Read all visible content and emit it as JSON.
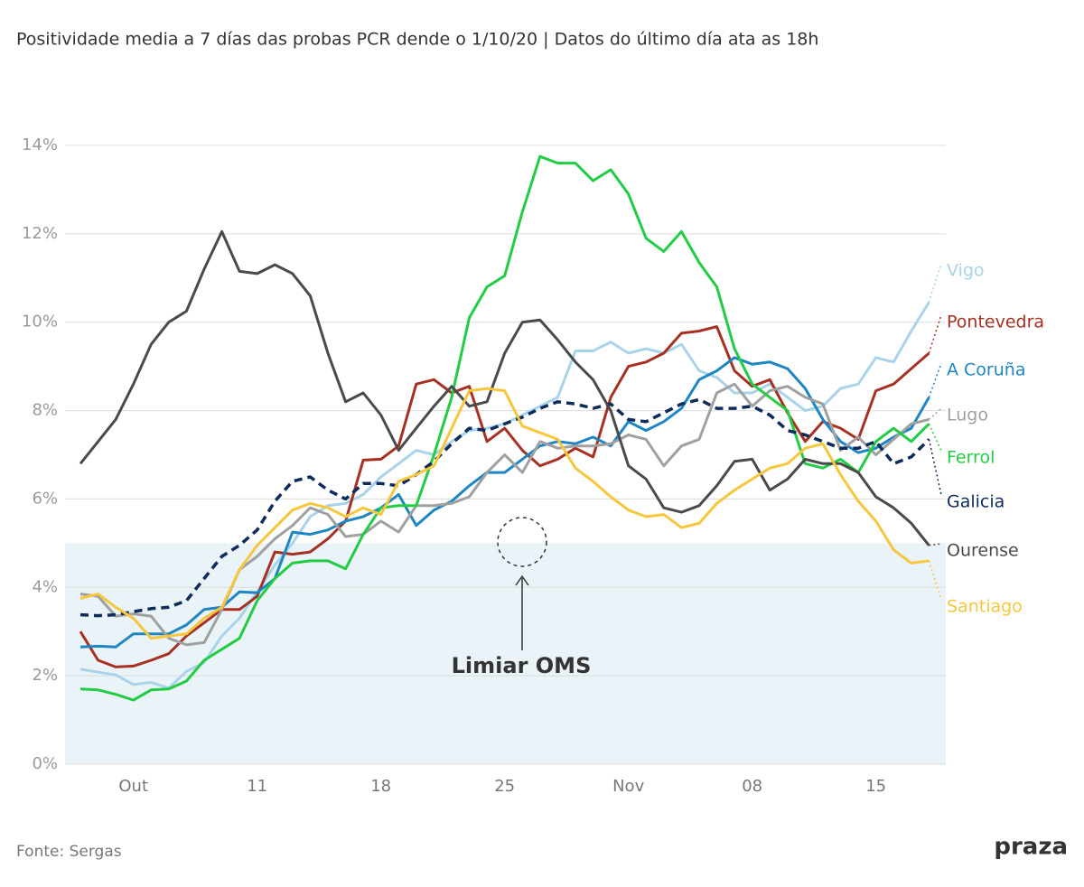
{
  "chart_data": {
    "type": "line",
    "title": "Positividade media a 7 días das probas PCR dende o 1/10/20 | Datos do último día ata as 18h",
    "source": "Fonte: Sergas",
    "logo": "praza",
    "annotation": "Limiar OMS",
    "threshold": 5,
    "threshold_color": "#eaf3f8",
    "grid": true,
    "categories": [
      null,
      null,
      null,
      "Out",
      null,
      null,
      null,
      null,
      null,
      null,
      "11",
      null,
      null,
      null,
      null,
      null,
      null,
      "18",
      null,
      null,
      null,
      null,
      null,
      null,
      "25",
      null,
      null,
      null,
      null,
      null,
      null,
      "Nov",
      null,
      null,
      null,
      null,
      null,
      null,
      "08",
      null,
      null,
      null,
      null,
      null,
      null,
      "15",
      null,
      null,
      null
    ],
    "ylim": [
      0,
      14
    ],
    "yticks": [
      {
        "value": 0,
        "label": "0%"
      },
      {
        "value": 2,
        "label": "2%"
      },
      {
        "value": 4,
        "label": "4%"
      },
      {
        "value": 6,
        "label": "6%"
      },
      {
        "value": 8,
        "label": "8%"
      },
      {
        "value": 10,
        "label": "10%"
      },
      {
        "value": 12,
        "label": "12%"
      },
      {
        "value": 14,
        "label": "14%"
      }
    ],
    "series": [
      {
        "name": "Vigo",
        "color": "#a9d3ea",
        "values": [
          2.15,
          2.08,
          2.02,
          1.8,
          1.85,
          1.72,
          2.1,
          2.3,
          2.9,
          3.3,
          3.9,
          4.5,
          5.0,
          5.6,
          5.85,
          5.9,
          6.1,
          6.5,
          6.8,
          7.1,
          7.0,
          7.3,
          7.55,
          7.6,
          7.7,
          7.9,
          8.1,
          8.3,
          9.35,
          9.35,
          9.55,
          9.3,
          9.4,
          9.3,
          9.5,
          8.9,
          8.75,
          8.4,
          8.4,
          8.6,
          8.3,
          8.0,
          8.1,
          8.5,
          8.6,
          9.2,
          9.1,
          9.8,
          10.45
        ]
      },
      {
        "name": "Pontevedra",
        "color": "#a63022",
        "values": [
          3.0,
          2.35,
          2.2,
          2.22,
          2.35,
          2.5,
          2.9,
          3.2,
          3.5,
          3.5,
          3.8,
          4.8,
          4.75,
          4.8,
          5.1,
          5.5,
          6.88,
          6.9,
          7.2,
          8.6,
          8.7,
          8.4,
          8.55,
          7.3,
          7.6,
          7.1,
          6.75,
          6.9,
          7.15,
          6.95,
          8.3,
          9.0,
          9.1,
          9.3,
          9.75,
          9.8,
          9.9,
          8.9,
          8.55,
          8.7,
          7.95,
          7.3,
          7.75,
          7.6,
          7.35,
          8.45,
          8.6,
          8.95,
          9.3
        ]
      },
      {
        "name": "A Coruña",
        "color": "#1f86c4",
        "values": [
          2.65,
          2.67,
          2.65,
          2.95,
          2.95,
          2.95,
          3.15,
          3.5,
          3.55,
          3.9,
          3.88,
          4.2,
          5.25,
          5.2,
          5.3,
          5.5,
          5.6,
          5.8,
          6.1,
          5.4,
          5.75,
          5.95,
          6.3,
          6.6,
          6.6,
          6.9,
          7.2,
          7.3,
          7.25,
          7.4,
          7.2,
          7.75,
          7.55,
          7.75,
          8.05,
          8.7,
          8.9,
          9.2,
          9.05,
          9.1,
          8.95,
          8.5,
          7.8,
          7.3,
          7.05,
          7.15,
          7.4,
          7.6,
          8.3
        ]
      },
      {
        "name": "Lugo",
        "color": "#a0a0a0",
        "values": [
          3.85,
          3.8,
          3.35,
          3.4,
          3.35,
          2.85,
          2.7,
          2.75,
          3.5,
          4.4,
          4.7,
          5.1,
          5.4,
          5.8,
          5.65,
          5.15,
          5.2,
          5.5,
          5.25,
          5.85,
          5.85,
          5.9,
          6.05,
          6.6,
          7.0,
          6.6,
          7.3,
          7.15,
          7.2,
          7.2,
          7.25,
          7.45,
          7.35,
          6.75,
          7.2,
          7.35,
          8.4,
          8.6,
          8.1,
          8.45,
          8.55,
          8.3,
          8.15,
          7.1,
          7.4,
          7.0,
          7.35,
          7.7,
          7.8
        ]
      },
      {
        "name": "Ferrol",
        "color": "#22cc44",
        "values": [
          1.7,
          1.68,
          1.58,
          1.45,
          1.68,
          1.7,
          1.88,
          2.35,
          2.6,
          2.85,
          3.7,
          4.2,
          4.55,
          4.6,
          4.6,
          4.42,
          5.2,
          5.8,
          5.85,
          5.85,
          7.0,
          8.3,
          10.1,
          10.8,
          11.05,
          12.5,
          13.75,
          13.6,
          13.6,
          13.2,
          13.45,
          12.9,
          11.9,
          11.6,
          12.05,
          11.35,
          10.8,
          9.4,
          8.6,
          8.3,
          8.0,
          6.8,
          6.7,
          6.9,
          6.6,
          7.3,
          7.6,
          7.3,
          7.7
        ]
      },
      {
        "name": "Galicia",
        "color": "#0e2c5a",
        "dashed": true,
        "values": [
          3.38,
          3.36,
          3.38,
          3.45,
          3.52,
          3.55,
          3.7,
          4.2,
          4.7,
          4.95,
          5.3,
          5.95,
          6.4,
          6.5,
          6.2,
          6.0,
          6.35,
          6.35,
          6.3,
          6.55,
          6.85,
          7.25,
          7.6,
          7.55,
          7.7,
          7.85,
          8.05,
          8.2,
          8.15,
          8.05,
          8.15,
          7.8,
          7.75,
          7.95,
          8.15,
          8.25,
          8.05,
          8.05,
          8.1,
          7.9,
          7.55,
          7.45,
          7.3,
          7.15,
          7.15,
          7.3,
          6.8,
          6.95,
          7.35
        ]
      },
      {
        "name": "Ourense",
        "color": "#4a4a4a",
        "values": [
          6.8,
          7.3,
          7.8,
          8.6,
          9.5,
          10.0,
          10.25,
          11.2,
          12.05,
          11.15,
          11.1,
          11.3,
          11.1,
          10.6,
          9.3,
          8.2,
          8.4,
          7.9,
          7.1,
          7.6,
          8.1,
          8.55,
          8.1,
          8.2,
          9.3,
          10.0,
          10.05,
          9.6,
          9.1,
          8.7,
          8.0,
          6.75,
          6.45,
          5.8,
          5.7,
          5.85,
          6.3,
          6.85,
          6.9,
          6.2,
          6.45,
          6.9,
          6.8,
          6.8,
          6.6,
          6.05,
          5.8,
          5.45,
          4.95
        ]
      },
      {
        "name": "Santiago",
        "color": "#f6c63c",
        "values": [
          3.75,
          3.85,
          3.55,
          3.3,
          2.85,
          2.9,
          2.95,
          3.3,
          3.55,
          4.4,
          4.95,
          5.35,
          5.75,
          5.9,
          5.8,
          5.6,
          5.8,
          5.65,
          6.4,
          6.55,
          6.75,
          7.6,
          8.45,
          8.5,
          8.45,
          7.65,
          7.5,
          7.35,
          6.7,
          6.4,
          6.05,
          5.75,
          5.6,
          5.65,
          5.35,
          5.45,
          5.9,
          6.2,
          6.45,
          6.7,
          6.8,
          7.15,
          7.25,
          6.55,
          5.95,
          5.5,
          4.85,
          4.55,
          4.6
        ]
      }
    ]
  }
}
